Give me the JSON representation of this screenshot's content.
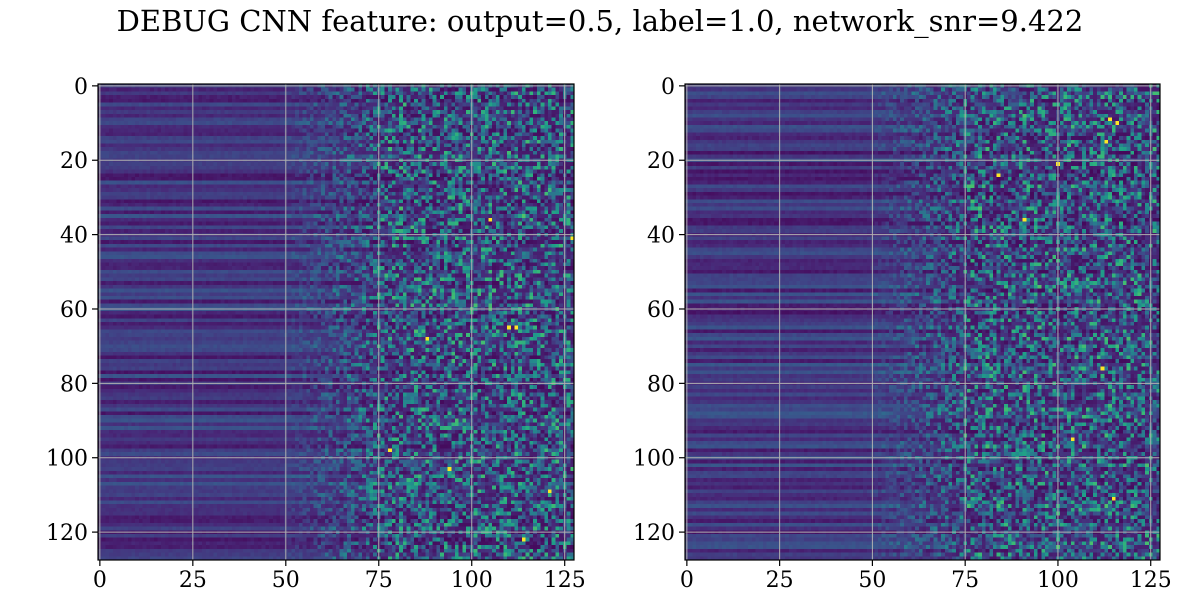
{
  "title": "DEBUG CNN feature: output=0.5, label=1.0, network_snr=9.422",
  "colormap": "viridis",
  "chart_data": [
    {
      "type": "heatmap",
      "title": "",
      "xlabel": "",
      "ylabel": "",
      "rows": 128,
      "cols": 128,
      "xlim": [
        0,
        127
      ],
      "ylim": [
        127,
        0
      ],
      "grid": true,
      "x_ticks": [
        0,
        25,
        50,
        75,
        100,
        125
      ],
      "y_ticks": [
        0,
        20,
        40,
        60,
        80,
        100,
        120
      ],
      "seed": 17,
      "hot_spots": [
        [
          36,
          105
        ],
        [
          68,
          88
        ],
        [
          65,
          110
        ],
        [
          65,
          112
        ],
        [
          109,
          121
        ],
        [
          122,
          114
        ],
        [
          98,
          78
        ],
        [
          103,
          94
        ],
        [
          41,
          127
        ]
      ]
    },
    {
      "type": "heatmap",
      "title": "",
      "xlabel": "",
      "ylabel": "",
      "rows": 128,
      "cols": 128,
      "xlim": [
        0,
        127
      ],
      "ylim": [
        127,
        0
      ],
      "grid": true,
      "x_ticks": [
        0,
        25,
        50,
        75,
        100,
        125
      ],
      "y_ticks": [
        0,
        20,
        40,
        60,
        80,
        100,
        120
      ],
      "seed": 42,
      "hot_spots": [
        [
          76,
          112
        ],
        [
          9,
          114
        ],
        [
          10,
          116
        ],
        [
          15,
          113
        ],
        [
          21,
          100
        ],
        [
          36,
          91
        ],
        [
          95,
          104
        ],
        [
          111,
          115
        ],
        [
          24,
          84
        ]
      ]
    }
  ]
}
